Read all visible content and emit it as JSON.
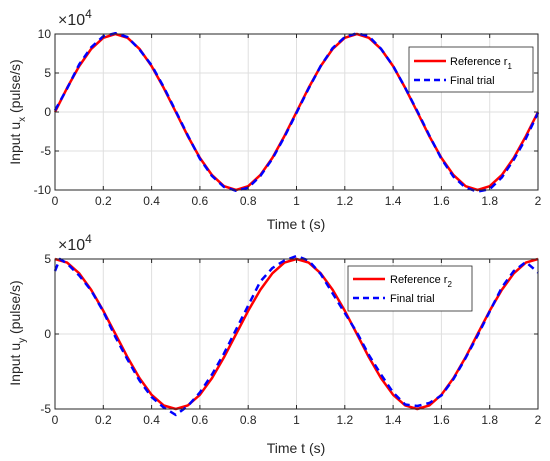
{
  "colors": {
    "reference": "#ff0000",
    "final_trial": "#0000ff",
    "axes": "#262626",
    "grid": "#dfdfdf",
    "background": "#ffffff"
  },
  "chart_data": [
    {
      "type": "line",
      "xlabel": "Time t (s)",
      "ylabel_main": "Input u",
      "ylabel_sub": "x",
      "ylabel_unit": " (pulse/s)",
      "exponent_base": "×10",
      "exponent_power": "4",
      "xlim": [
        0,
        2
      ],
      "ylim": [
        -10,
        10
      ],
      "xticks": [
        "0",
        "0.2",
        "0.4",
        "0.6",
        "0.8",
        "1",
        "1.2",
        "1.4",
        "1.6",
        "1.8",
        "2"
      ],
      "yticks": [
        "-10",
        "-5",
        "0",
        "5",
        "10"
      ],
      "grid": true,
      "legend_position": "top-right",
      "series": [
        {
          "name": "Reference r",
          "name_sub": "1",
          "style": "solid",
          "x": [
            0,
            0.05,
            0.1,
            0.15,
            0.2,
            0.25,
            0.3,
            0.35,
            0.4,
            0.45,
            0.5,
            0.55,
            0.6,
            0.65,
            0.7,
            0.75,
            0.8,
            0.85,
            0.9,
            0.95,
            1.0,
            1.05,
            1.1,
            1.15,
            1.2,
            1.25,
            1.3,
            1.35,
            1.4,
            1.45,
            1.5,
            1.55,
            1.6,
            1.65,
            1.7,
            1.75,
            1.8,
            1.85,
            1.9,
            1.95,
            2.0
          ],
          "y": [
            0,
            3.09,
            5.88,
            8.09,
            9.51,
            10,
            9.51,
            8.09,
            5.88,
            3.09,
            0,
            -3.09,
            -5.88,
            -8.09,
            -9.51,
            -10,
            -9.51,
            -8.09,
            -5.88,
            -3.09,
            0,
            3.09,
            5.88,
            8.09,
            9.51,
            10,
            9.51,
            8.09,
            5.88,
            3.09,
            0,
            -3.09,
            -5.88,
            -8.09,
            -9.51,
            -10,
            -9.51,
            -8.09,
            -5.88,
            -3.09,
            0
          ]
        },
        {
          "name": "Final trial",
          "style": "dashed",
          "x": [
            0,
            0.05,
            0.1,
            0.15,
            0.2,
            0.25,
            0.3,
            0.35,
            0.4,
            0.45,
            0.5,
            0.55,
            0.6,
            0.65,
            0.7,
            0.75,
            0.8,
            0.85,
            0.9,
            0.95,
            1.0,
            1.05,
            1.1,
            1.15,
            1.2,
            1.25,
            1.3,
            1.35,
            1.4,
            1.45,
            1.5,
            1.55,
            1.6,
            1.65,
            1.7,
            1.75,
            1.8,
            1.85,
            1.9,
            1.95,
            2.0
          ],
          "y": [
            0.2,
            3.0,
            6.1,
            8.3,
            9.7,
            10.1,
            9.6,
            8.0,
            6.0,
            3.2,
            0.1,
            -3.0,
            -6.0,
            -8.2,
            -9.6,
            -10.1,
            -9.7,
            -8.2,
            -6.0,
            -3.2,
            -0.1,
            3.0,
            5.9,
            8.2,
            9.6,
            10.1,
            9.7,
            8.1,
            5.9,
            3.1,
            0.1,
            -3.0,
            -6.0,
            -8.3,
            -9.7,
            -10.2,
            -9.9,
            -8.4,
            -6.1,
            -3.4,
            -0.1
          ]
        }
      ]
    },
    {
      "type": "line",
      "xlabel": "Time t (s)",
      "ylabel_main": "Input u",
      "ylabel_sub": "y",
      "ylabel_unit": " (pulse/s)",
      "exponent_base": "×10",
      "exponent_power": "4",
      "xlim": [
        0,
        2
      ],
      "ylim": [
        -5,
        5
      ],
      "xticks": [
        "0",
        "0.2",
        "0.4",
        "0.6",
        "0.8",
        "1",
        "1.2",
        "1.4",
        "1.6",
        "1.8",
        "2"
      ],
      "yticks": [
        "-5",
        "0",
        "5"
      ],
      "grid": true,
      "legend_position": "top-right",
      "series": [
        {
          "name": "Reference r",
          "name_sub": "2",
          "style": "solid",
          "x": [
            0,
            0.05,
            0.1,
            0.15,
            0.2,
            0.25,
            0.3,
            0.35,
            0.4,
            0.45,
            0.5,
            0.55,
            0.6,
            0.65,
            0.7,
            0.75,
            0.8,
            0.85,
            0.9,
            0.95,
            1.0,
            1.05,
            1.1,
            1.15,
            1.2,
            1.25,
            1.3,
            1.35,
            1.4,
            1.45,
            1.5,
            1.55,
            1.6,
            1.65,
            1.7,
            1.75,
            1.8,
            1.85,
            1.9,
            1.95,
            2.0
          ],
          "y": [
            5,
            4.76,
            4.05,
            2.94,
            1.55,
            0,
            -1.55,
            -2.94,
            -4.05,
            -4.76,
            -5,
            -4.76,
            -4.05,
            -2.94,
            -1.55,
            0,
            1.55,
            2.94,
            4.05,
            4.76,
            5,
            4.76,
            4.05,
            2.94,
            1.55,
            0,
            -1.55,
            -2.94,
            -4.05,
            -4.76,
            -5,
            -4.76,
            -4.05,
            -2.94,
            -1.55,
            0,
            1.55,
            2.94,
            4.05,
            4.76,
            5
          ]
        },
        {
          "name": "Final trial",
          "style": "dashed",
          "x": [
            0,
            0.02,
            0.05,
            0.1,
            0.15,
            0.2,
            0.25,
            0.3,
            0.35,
            0.4,
            0.45,
            0.5,
            0.55,
            0.6,
            0.65,
            0.7,
            0.75,
            0.8,
            0.85,
            0.9,
            0.95,
            1.0,
            1.05,
            1.1,
            1.15,
            1.2,
            1.25,
            1.3,
            1.35,
            1.4,
            1.45,
            1.5,
            1.55,
            1.6,
            1.65,
            1.7,
            1.75,
            1.8,
            1.85,
            1.9,
            1.95,
            2.0
          ],
          "y": [
            4.2,
            5.0,
            4.7,
            3.9,
            2.9,
            1.5,
            -0.2,
            -1.7,
            -3.1,
            -4.2,
            -4.9,
            -5.4,
            -4.8,
            -3.9,
            -2.7,
            -1.3,
            0.3,
            1.9,
            3.5,
            4.4,
            4.9,
            5.2,
            4.9,
            4.0,
            2.7,
            1.4,
            0.1,
            -1.4,
            -2.7,
            -3.9,
            -4.7,
            -4.8,
            -4.6,
            -4.1,
            -3.0,
            -1.6,
            -0.1,
            1.5,
            3.1,
            4.2,
            4.8,
            4.1
          ]
        }
      ]
    }
  ]
}
